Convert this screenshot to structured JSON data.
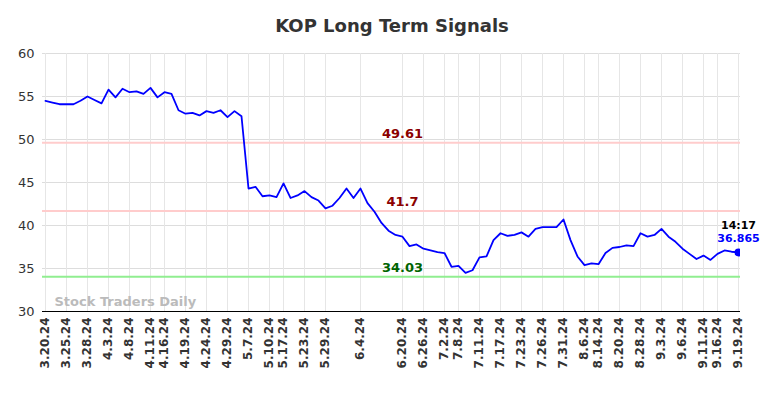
{
  "chart_data": {
    "type": "line",
    "title": "KOP Long Term Signals",
    "categories": [
      "3.20.24",
      null,
      null,
      "3.25.24",
      null,
      null,
      "3.28.24",
      null,
      null,
      "4.3.24",
      null,
      null,
      "4.8.24",
      null,
      null,
      "4.11.24",
      null,
      "4.16.24",
      null,
      null,
      "4.19.24",
      null,
      null,
      "4.24.24",
      null,
      null,
      "4.29.24",
      null,
      null,
      "5.7.24",
      null,
      null,
      "5.10.24",
      null,
      "5.17.24",
      null,
      null,
      "5.23.24",
      null,
      null,
      "5.29.24",
      null,
      null,
      null,
      null,
      "6.4.24",
      null,
      null,
      null,
      null,
      null,
      "6.20.24",
      null,
      null,
      "6.26.24",
      null,
      null,
      "7.2.24",
      null,
      "7.8.24",
      null,
      null,
      "7.11.24",
      null,
      null,
      "7.17.24",
      null,
      null,
      "7.23.24",
      null,
      null,
      "7.26.24",
      null,
      null,
      "7.31.24",
      null,
      null,
      "8.6.24",
      null,
      "8.14.24",
      null,
      null,
      "8.20.24",
      null,
      null,
      "8.28.24",
      null,
      null,
      "9.3.24",
      null,
      null,
      "9.6.24",
      null,
      null,
      "9.11.24",
      null,
      "9.16.24",
      null,
      null,
      "9.19.24"
    ],
    "values": [
      54.5,
      54.3,
      54.1,
      54.1,
      54.1,
      54.5,
      55.0,
      54.6,
      54.2,
      55.8,
      54.9,
      55.9,
      55.5,
      55.6,
      55.3,
      56.0,
      54.9,
      55.5,
      55.3,
      53.4,
      53.0,
      53.1,
      52.8,
      53.3,
      53.1,
      53.4,
      52.6,
      53.3,
      52.7,
      44.3,
      44.5,
      43.4,
      43.5,
      43.3,
      44.9,
      43.2,
      43.5,
      44.0,
      43.3,
      42.9,
      42.0,
      42.3,
      43.2,
      44.3,
      43.2,
      44.3,
      42.6,
      41.6,
      40.3,
      39.4,
      38.9,
      38.7,
      37.6,
      37.8,
      37.3,
      37.1,
      36.9,
      36.8,
      35.2,
      35.3,
      34.5,
      34.8,
      36.3,
      36.4,
      38.3,
      39.1,
      38.8,
      38.9,
      39.2,
      38.7,
      39.6,
      39.8,
      39.8,
      39.8,
      40.7,
      38.3,
      36.4,
      35.4,
      35.6,
      35.5,
      36.8,
      37.4,
      37.5,
      37.7,
      37.6,
      39.1,
      38.7,
      38.9,
      39.6,
      38.7,
      38.1,
      37.3,
      36.7,
      36.1,
      36.5,
      36.0,
      36.7,
      37.1,
      36.95,
      36.865
    ],
    "color": "#0000ff",
    "ylim": [
      30,
      60
    ],
    "yticks": [
      30,
      35,
      40,
      45,
      50,
      55,
      60
    ],
    "grid": true,
    "reference_lines": [
      {
        "value": 49.61,
        "color": "#ffcccc",
        "label_color": "#8b0000"
      },
      {
        "value": 41.7,
        "color": "#ffcccc",
        "label_color": "#8b0000"
      },
      {
        "value": 34.03,
        "color": "#90ee90",
        "label_color": "#006400"
      }
    ],
    "last_point_time": "14:17",
    "watermark": "Stock Traders Daily"
  }
}
